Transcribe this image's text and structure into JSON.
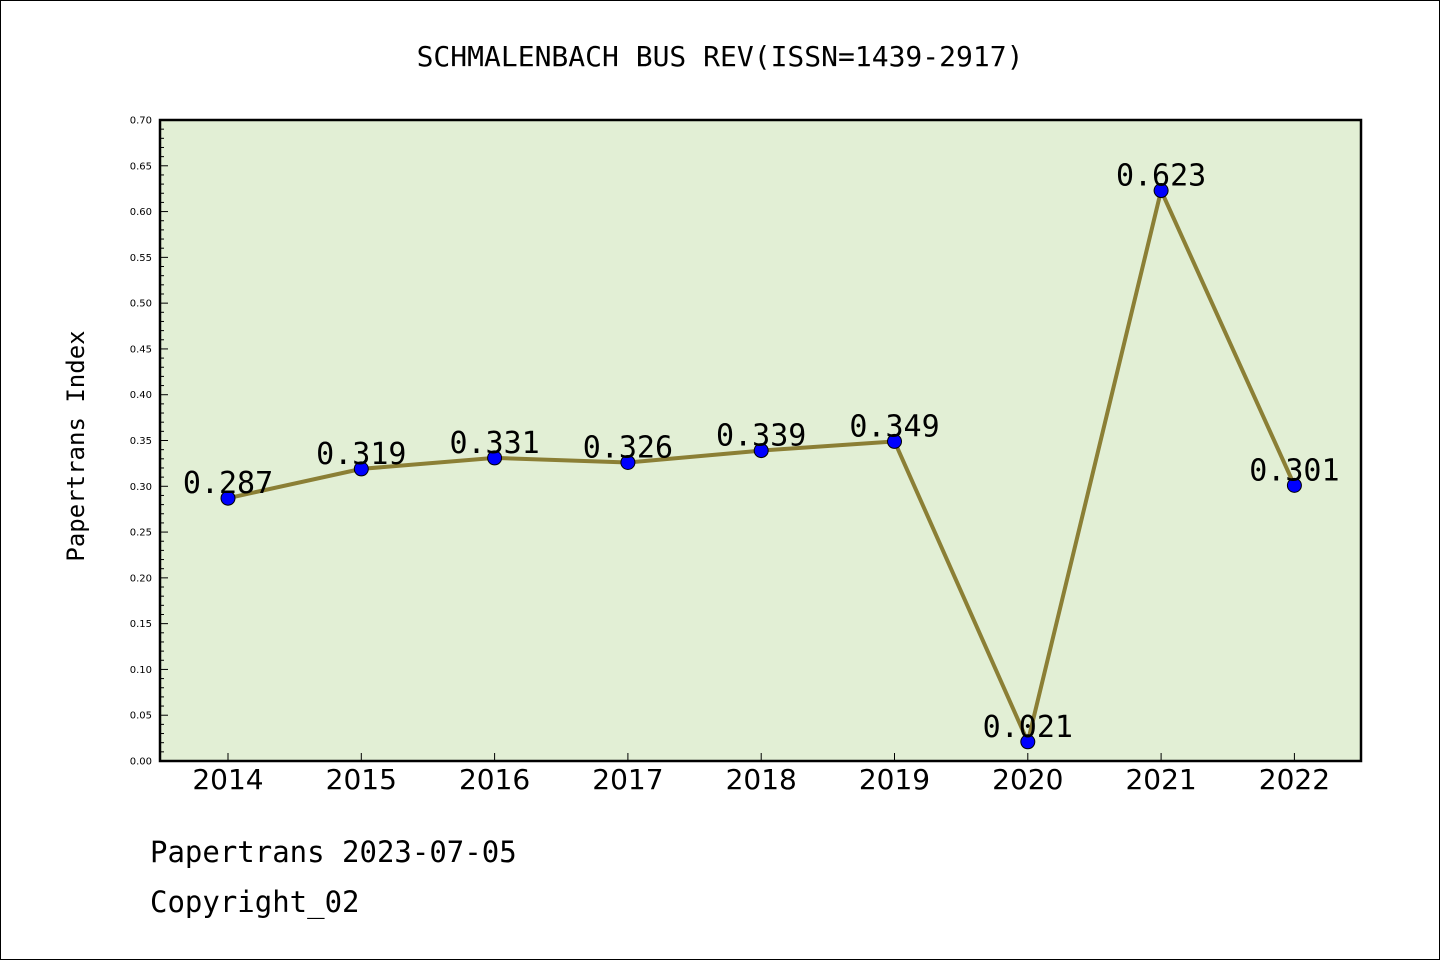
{
  "chart_data": {
    "type": "line",
    "title": "SCHMALENBACH BUS REV(ISSN=1439-2917)",
    "ylabel": "Papertrans Index",
    "xlabel": "",
    "categories": [
      "2014",
      "2015",
      "2016",
      "2017",
      "2018",
      "2019",
      "2020",
      "2021",
      "2022"
    ],
    "values": [
      0.287,
      0.319,
      0.331,
      0.326,
      0.339,
      0.349,
      0.021,
      0.623,
      0.301
    ],
    "value_labels": [
      "0.287",
      "0.319",
      "0.331",
      "0.326",
      "0.339",
      "0.349",
      "0.021",
      "0.623",
      "0.301"
    ],
    "ylim": [
      0,
      0.7
    ],
    "yticks": [
      "0.00",
      "0.05",
      "0.10",
      "0.15",
      "0.20",
      "0.25",
      "0.30",
      "0.35",
      "0.40",
      "0.45",
      "0.50",
      "0.55",
      "0.60",
      "0.65",
      "0.70"
    ],
    "grid": false,
    "colors": {
      "plot_background": "#e2efd5",
      "line": "#8b7f35",
      "marker": "#0000ff"
    }
  },
  "footer": {
    "line1": "Papertrans 2023-07-05",
    "line2": "Copyright_02"
  }
}
